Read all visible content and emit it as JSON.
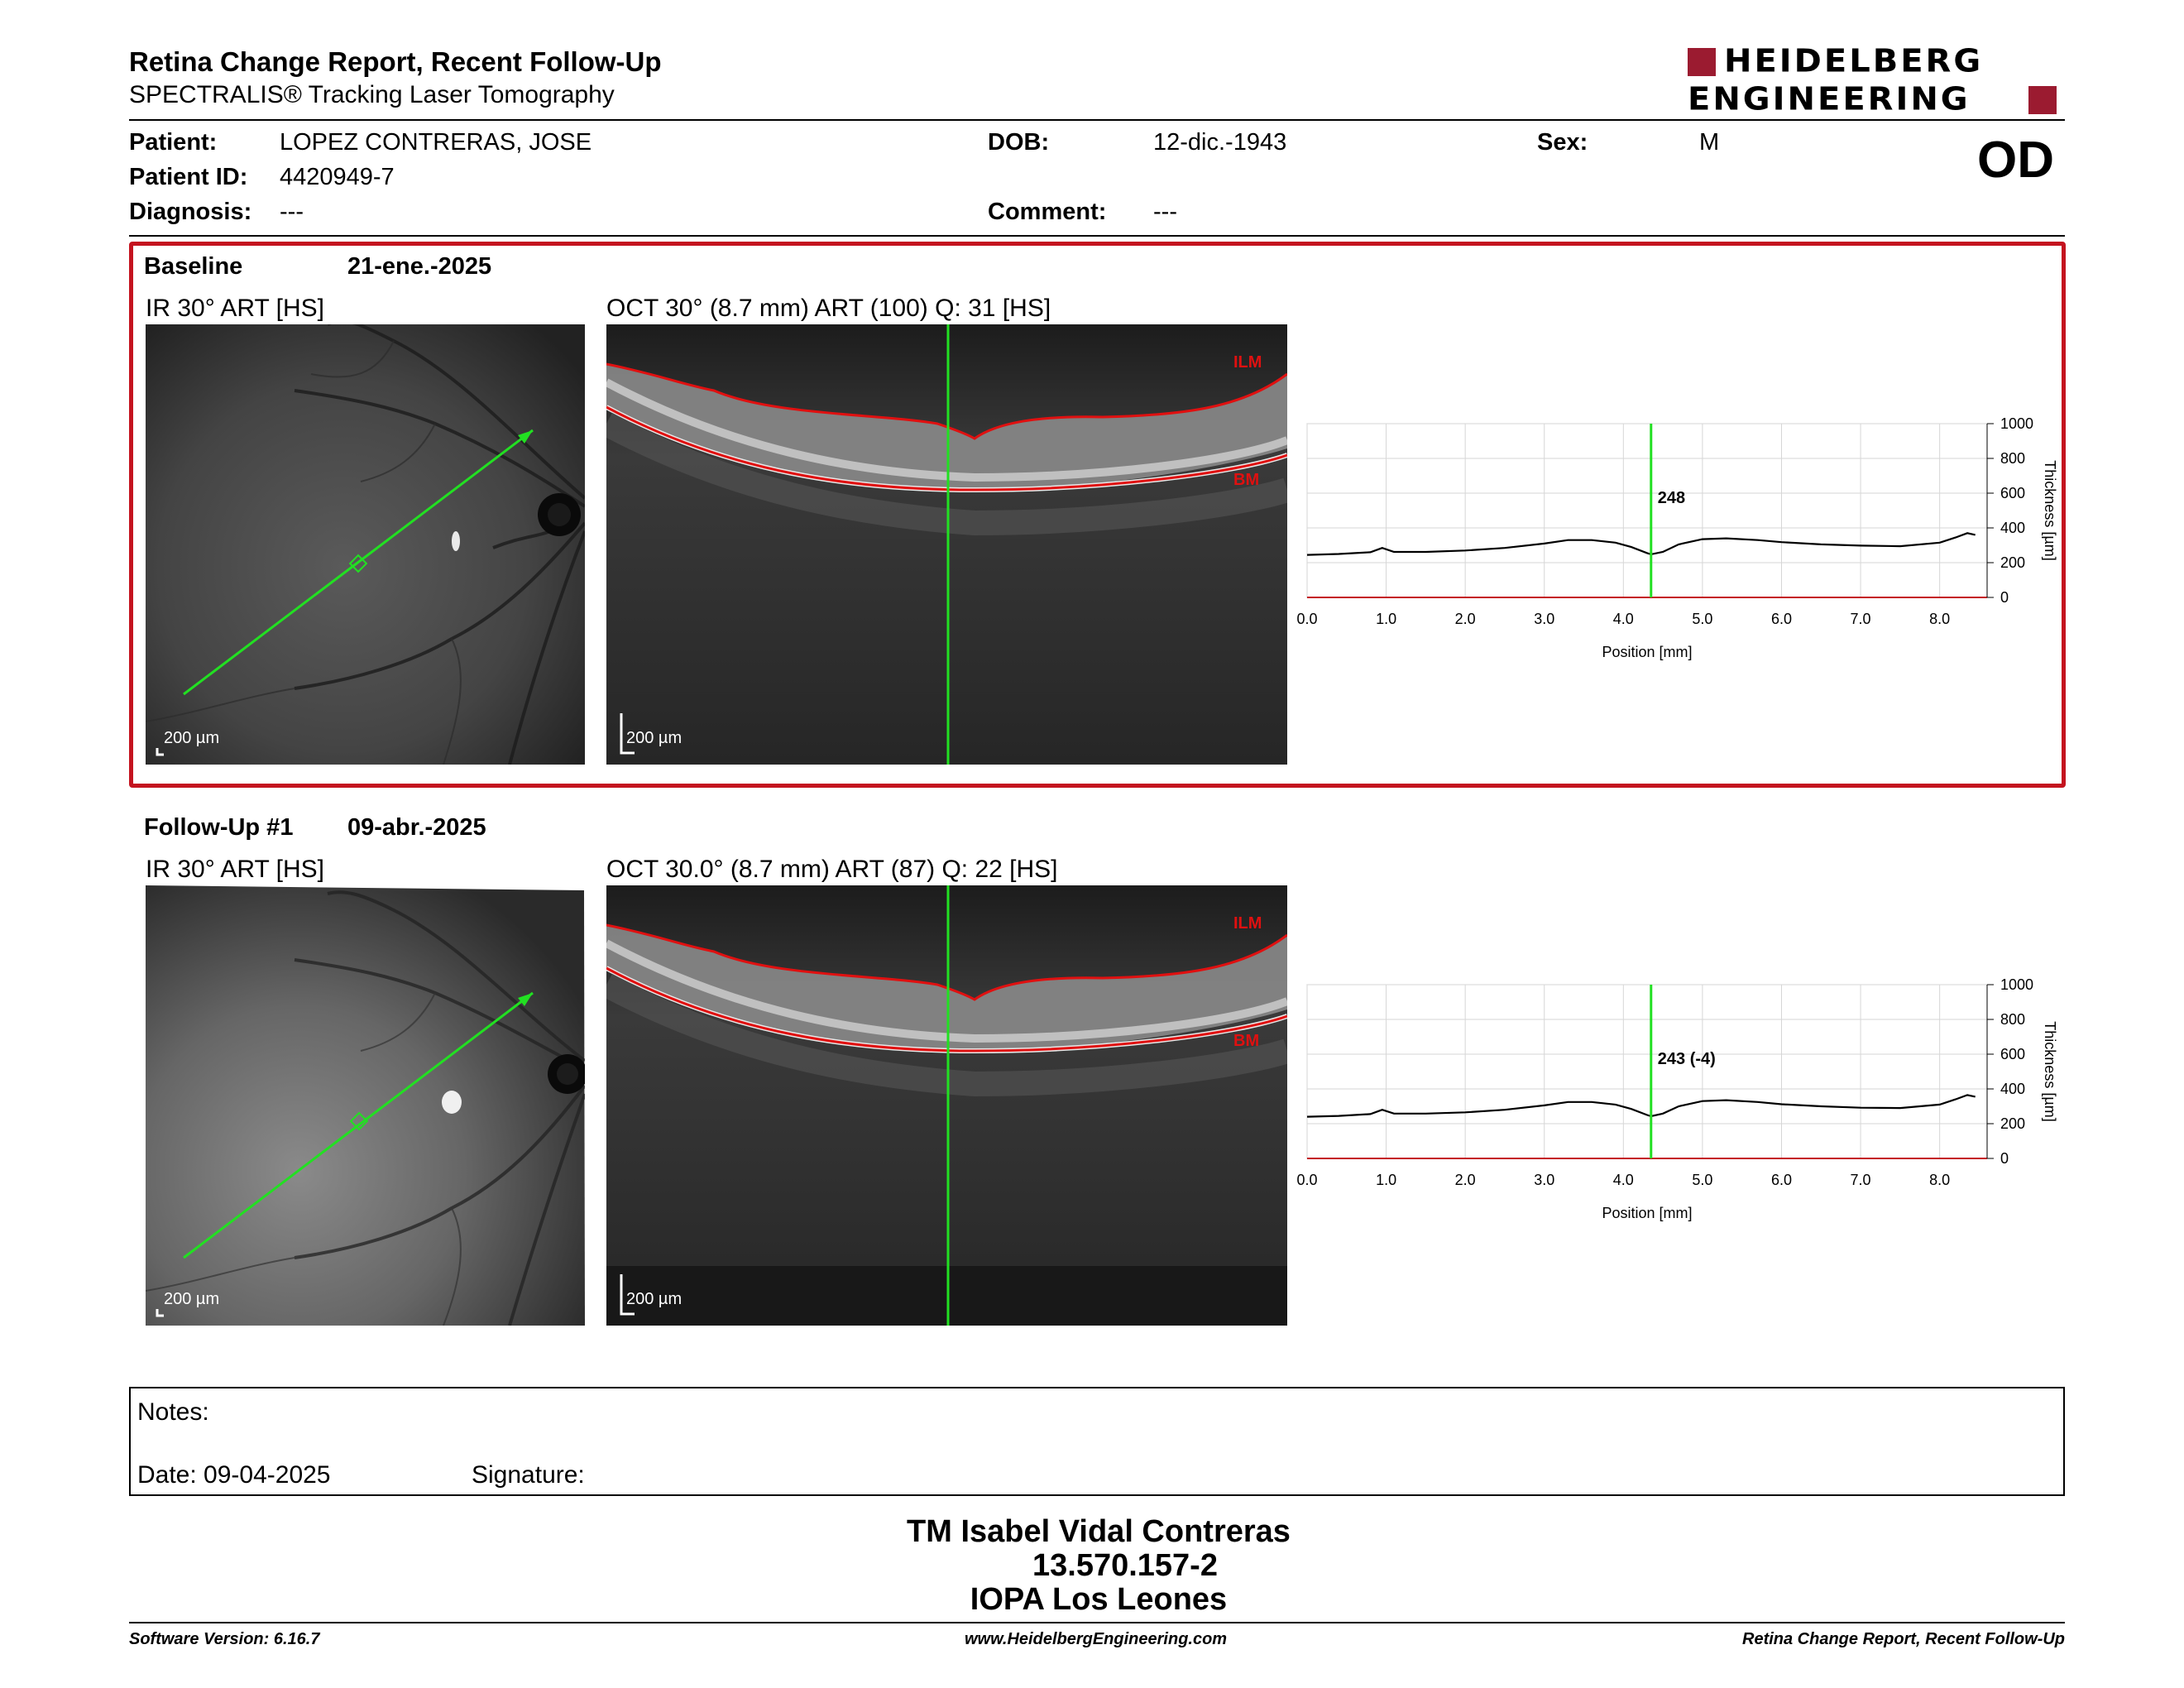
{
  "header": {
    "title": "Retina Change Report, Recent Follow-Up",
    "subtitle": "SPECTRALIS® Tracking Laser Tomography",
    "logo_line1": "HEIDELBERG",
    "logo_line2": "ENGINEERING",
    "eye": "OD"
  },
  "patient": {
    "patient_label": "Patient:",
    "patient_value": "LOPEZ CONTRERAS, JOSE",
    "id_label": "Patient ID:",
    "id_value": "4420949-7",
    "diagnosis_label": "Diagnosis:",
    "diagnosis_value": "---",
    "dob_label": "DOB:",
    "dob_value": "12-dic.-1943",
    "comment_label": "Comment:",
    "comment_value": "---",
    "sex_label": "Sex:",
    "sex_value": "M"
  },
  "baseline": {
    "label": "Baseline",
    "date": "21-ene.-2025",
    "ir_label": "IR 30° ART [HS]",
    "oct_label": "OCT 30° (8.7 mm) ART (100) Q: 31 [HS]",
    "scale": "200 µm",
    "ilm": "ILM",
    "bm": "BM",
    "marker_value": "248"
  },
  "followup": {
    "label": "Follow-Up #1",
    "date": "09-abr.-2025",
    "ir_label": "IR 30° ART [HS]",
    "oct_label": "OCT 30.0° (8.7 mm) ART (87) Q: 22 [HS]",
    "scale": "200 µm",
    "ilm": "ILM",
    "bm": "BM",
    "marker_value": "243 (-4)"
  },
  "chart_data": [
    {
      "type": "line",
      "title": "",
      "xlabel": "Position [mm]",
      "ylabel": "Thickness [µm]",
      "xlim": [
        0,
        8.6
      ],
      "ylim": [
        0,
        1000
      ],
      "xticks": [
        "0.0",
        "1.0",
        "2.0",
        "3.0",
        "4.0",
        "5.0",
        "6.0",
        "7.0",
        "8.0"
      ],
      "yticks": [
        "0",
        "200",
        "400",
        "600",
        "800",
        "1000"
      ],
      "marker_x": 4.35,
      "marker_label": "248",
      "series": [
        {
          "x": [
            0.0,
            0.4,
            0.8,
            0.95,
            1.1,
            1.5,
            2.0,
            2.5,
            3.0,
            3.3,
            3.6,
            3.9,
            4.1,
            4.3,
            4.35,
            4.5,
            4.7,
            5.0,
            5.3,
            5.7,
            6.0,
            6.5,
            7.0,
            7.5,
            8.0,
            8.2,
            8.35,
            8.45
          ],
          "y": [
            245,
            250,
            260,
            285,
            262,
            262,
            270,
            285,
            310,
            330,
            330,
            315,
            290,
            255,
            248,
            262,
            305,
            335,
            340,
            330,
            318,
            305,
            298,
            295,
            315,
            345,
            370,
            360
          ]
        }
      ]
    },
    {
      "type": "line",
      "title": "",
      "xlabel": "Position [mm]",
      "ylabel": "Thickness [µm]",
      "xlim": [
        0,
        8.6
      ],
      "ylim": [
        0,
        1000
      ],
      "xticks": [
        "0.0",
        "1.0",
        "2.0",
        "3.0",
        "4.0",
        "5.0",
        "6.0",
        "7.0",
        "8.0"
      ],
      "yticks": [
        "0",
        "200",
        "400",
        "600",
        "800",
        "1000"
      ],
      "marker_x": 4.35,
      "marker_label": "243 (-4)",
      "series": [
        {
          "x": [
            0.0,
            0.4,
            0.8,
            0.95,
            1.1,
            1.5,
            2.0,
            2.5,
            3.0,
            3.3,
            3.6,
            3.9,
            4.1,
            4.3,
            4.35,
            4.5,
            4.7,
            5.0,
            5.3,
            5.7,
            6.0,
            6.5,
            7.0,
            7.5,
            8.0,
            8.2,
            8.35,
            8.45
          ],
          "y": [
            240,
            245,
            255,
            280,
            258,
            258,
            265,
            280,
            305,
            325,
            325,
            310,
            285,
            250,
            243,
            258,
            300,
            330,
            335,
            325,
            312,
            300,
            292,
            290,
            310,
            340,
            365,
            355
          ]
        }
      ]
    }
  ],
  "notes": {
    "notes_label": "Notes:",
    "date_label": "Date: 09-04-2025",
    "signature_label": "Signature:"
  },
  "signature_block": {
    "name": "TM Isabel Vidal Contreras",
    "rut": "13.570.157-2",
    "place": "IOPA Los Leones"
  },
  "footer": {
    "software": "Software Version: 6.16.7",
    "website": "www.HeidelbergEngineering.com",
    "report": "Retina Change Report, Recent Follow-Up"
  },
  "colors": {
    "frame": "#c4131f",
    "marker": "#22e022",
    "layer": "#e01010",
    "brand": "#9b1b30"
  }
}
